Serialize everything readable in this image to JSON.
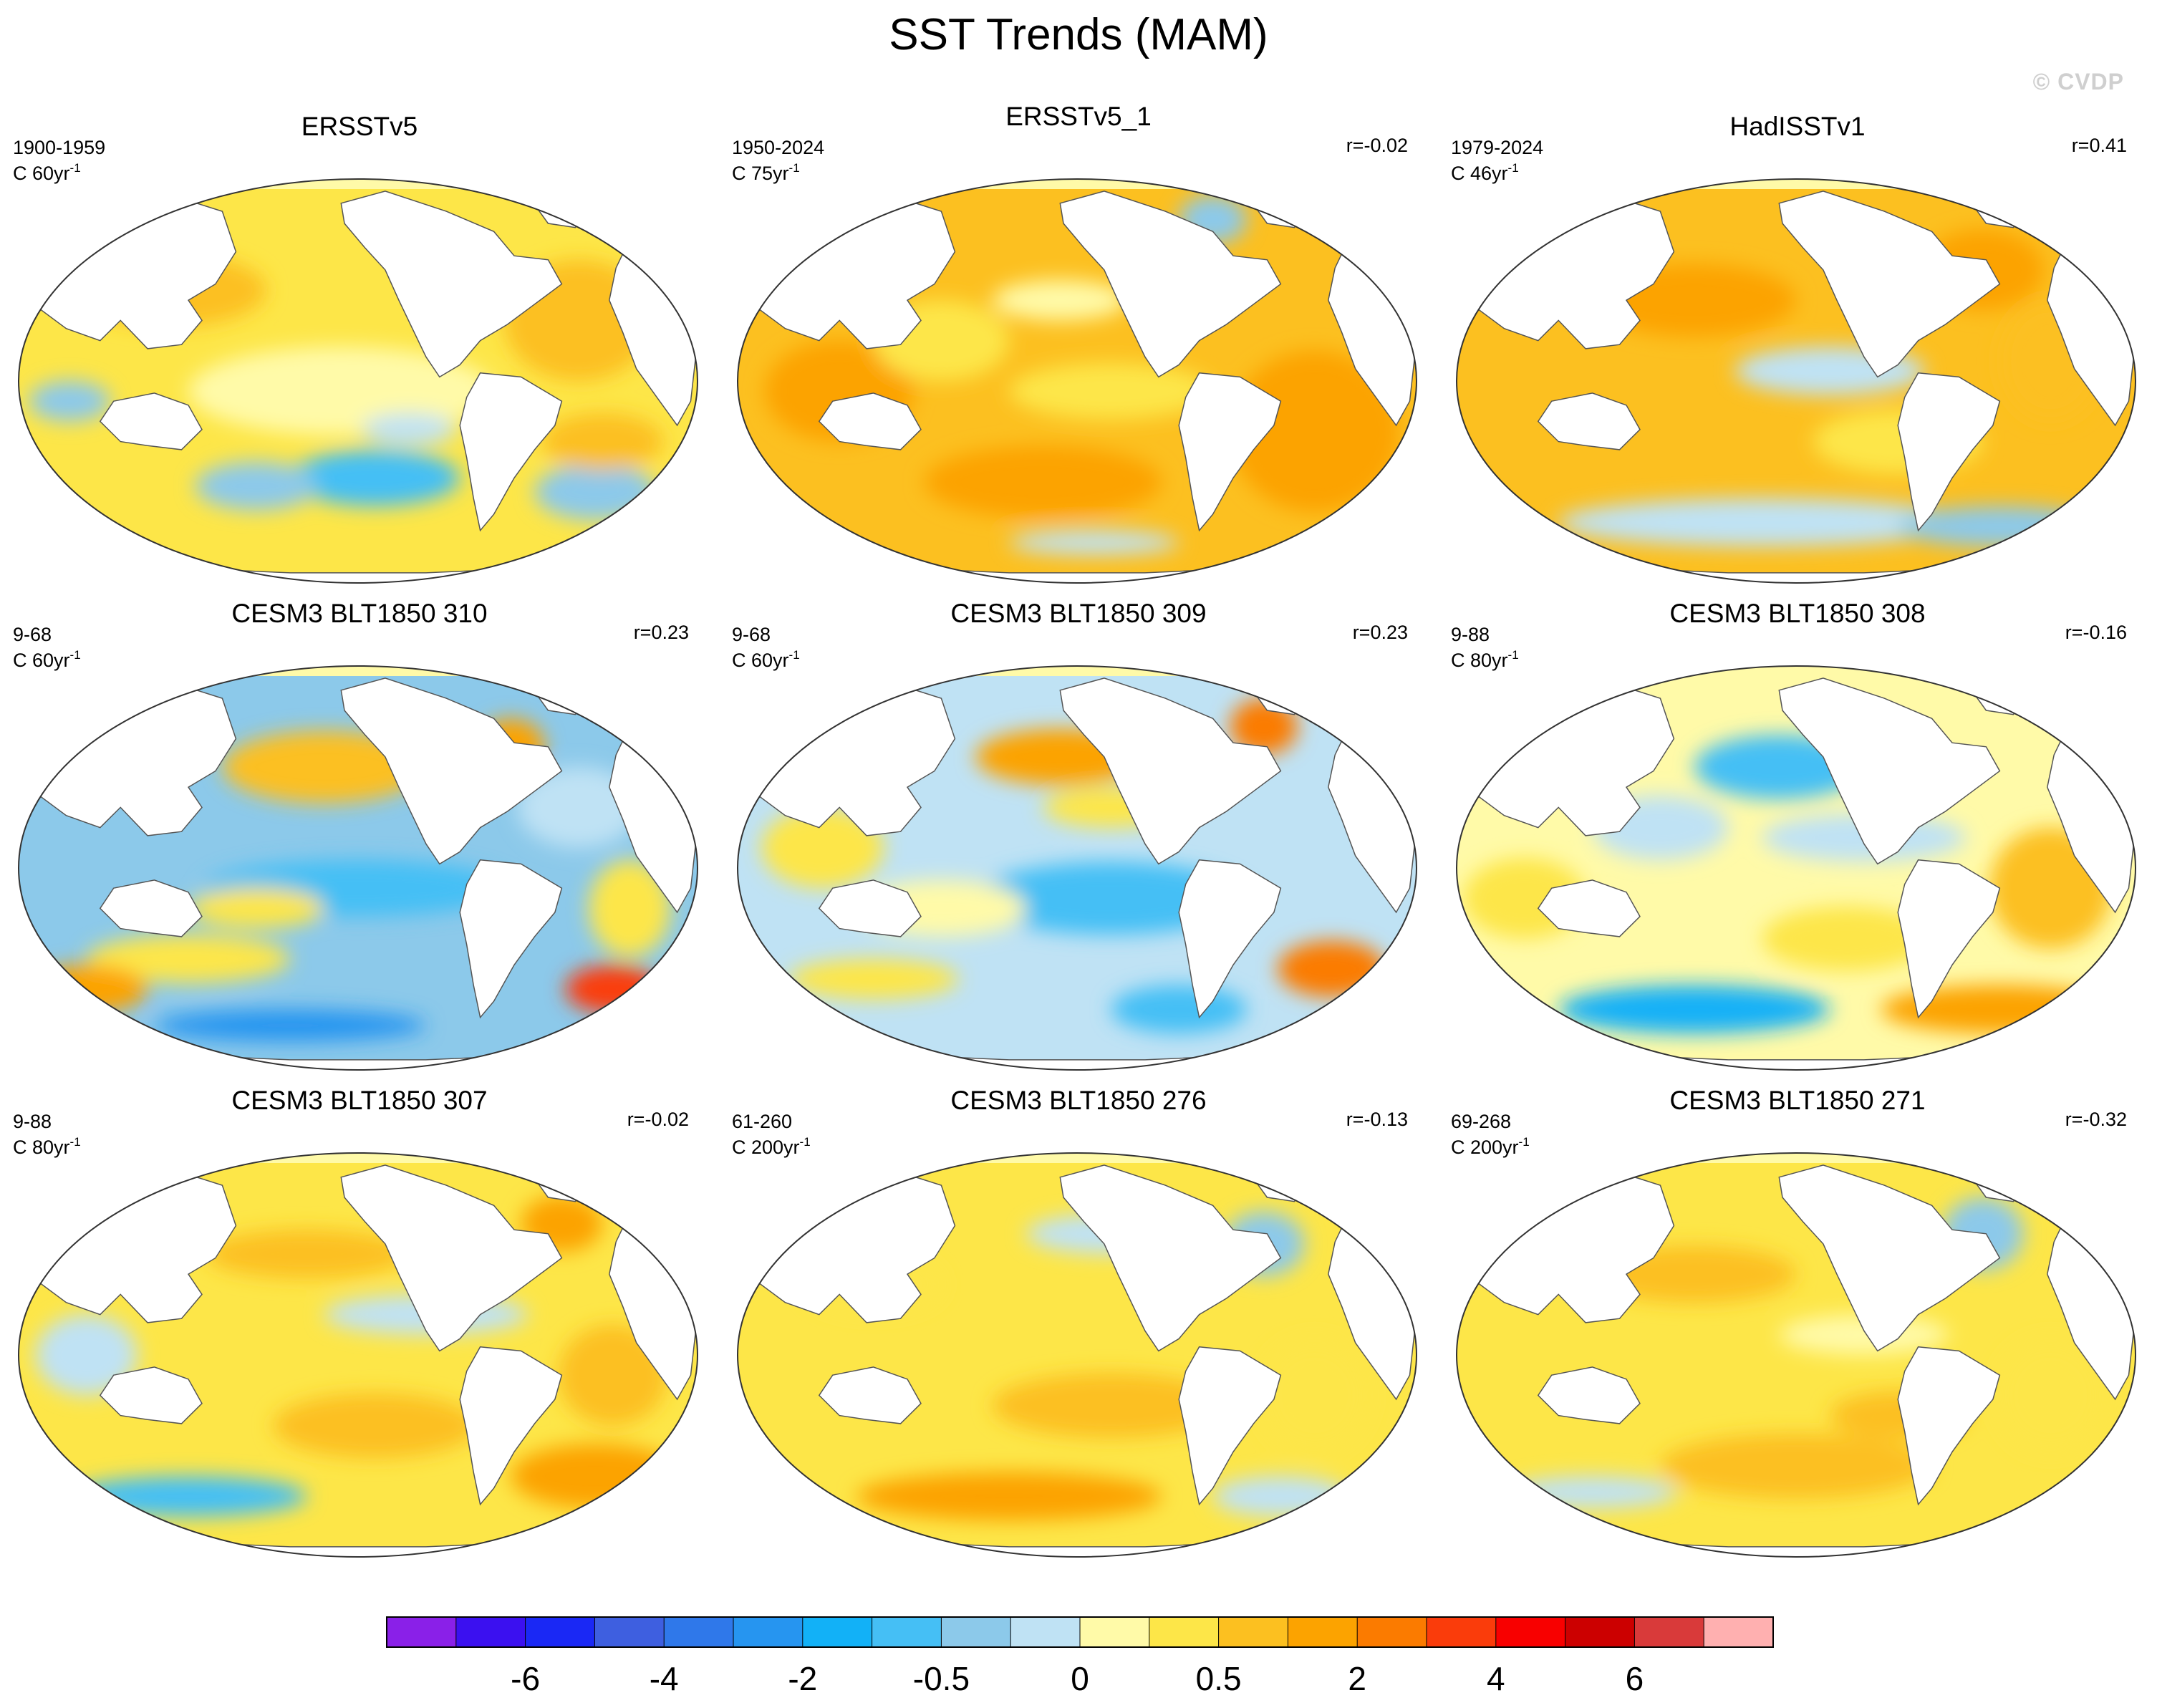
{
  "title": "SST Trends (MAM)",
  "watermark": "© CVDP",
  "panels": [
    {
      "title": "ERSSTv5",
      "period": "1900-1959",
      "unit": "C 60yr",
      "unit_sup": "-1",
      "r": "",
      "pattern": "obs_early"
    },
    {
      "title": "ERSSTv5_1",
      "period": "1950-2024",
      "unit": "C 75yr",
      "unit_sup": "-1",
      "r": "r=-0.02",
      "pattern": "obs_warm"
    },
    {
      "title": "HadISSTv1",
      "period": "1979-2024",
      "unit": "C 46yr",
      "unit_sup": "-1",
      "r": "r=0.41",
      "pattern": "obs_recent"
    },
    {
      "title": "CESM3 BLT1850 310",
      "period": "9-68",
      "unit": "C 60yr",
      "unit_sup": "-1",
      "r": "r=0.23",
      "pattern": "cool_pacific_hot_atlantic"
    },
    {
      "title": "CESM3 BLT1850 309",
      "period": "9-68",
      "unit": "C 60yr",
      "unit_sup": "-1",
      "r": "r=0.23",
      "pattern": "cool_mixed"
    },
    {
      "title": "CESM3 BLT1850 308",
      "period": "9-88",
      "unit": "C 80yr",
      "unit_sup": "-1",
      "r": "r=-0.16",
      "pattern": "cool_north_pacific"
    },
    {
      "title": "CESM3 BLT1850 307",
      "period": "9-88",
      "unit": "C 80yr",
      "unit_sup": "-1",
      "r": "r=-0.02",
      "pattern": "mixed_cool_south"
    },
    {
      "title": "CESM3 BLT1850 276",
      "period": "61-260",
      "unit": "C 200yr",
      "unit_sup": "-1",
      "r": "r=-0.13",
      "pattern": "warm_south"
    },
    {
      "title": "CESM3 BLT1850 271",
      "period": "69-268",
      "unit": "C 200yr",
      "unit_sup": "-1",
      "r": "r=-0.32",
      "pattern": "warm_broad"
    }
  ],
  "colorbar": {
    "colors": [
      "#8a20e8",
      "#3b10f0",
      "#1a28f5",
      "#3e5fe0",
      "#2f78ea",
      "#2695f0",
      "#12b1f7",
      "#45bff5",
      "#8cc9ea",
      "#bfe2f4",
      "#fffaa8",
      "#fde648",
      "#fcc020",
      "#fca300",
      "#fb7b00",
      "#fa3c0b",
      "#f80000",
      "#cc0000",
      "#d93a3a",
      "#ffb0b0"
    ],
    "labels": [
      {
        "text": "-6",
        "boundary": 2
      },
      {
        "text": "-4",
        "boundary": 4
      },
      {
        "text": "-2",
        "boundary": 6
      },
      {
        "text": "-0.5",
        "boundary": 8
      },
      {
        "text": "0",
        "boundary": 10
      },
      {
        "text": "0.5",
        "boundary": 12
      },
      {
        "text": "2",
        "boundary": 14
      },
      {
        "text": "4",
        "boundary": 16
      },
      {
        "text": "6",
        "boundary": 18
      }
    ]
  }
}
